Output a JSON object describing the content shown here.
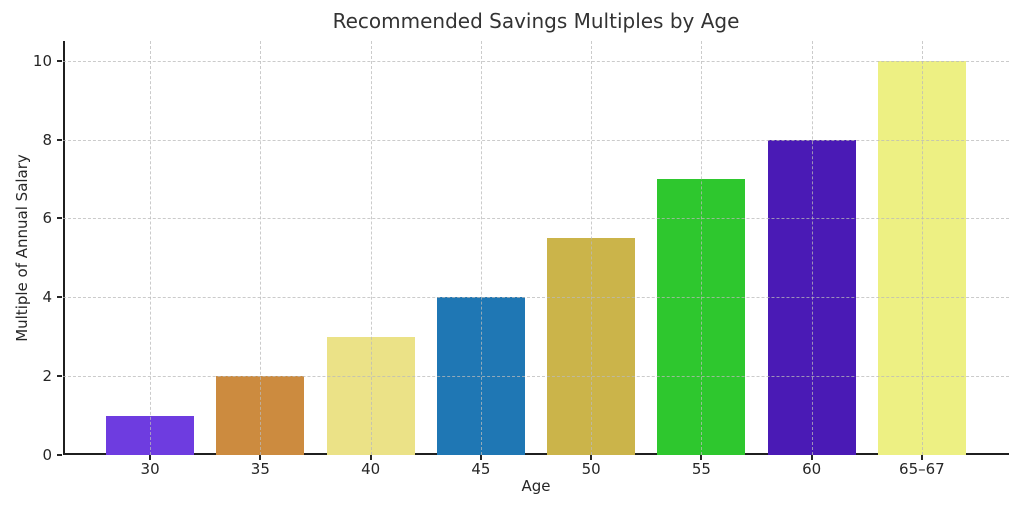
{
  "chart_data": {
    "type": "bar",
    "title": "Recommended Savings Multiples by Age",
    "xlabel": "Age",
    "ylabel": "Multiple of Annual Salary",
    "categories": [
      "30",
      "35",
      "40",
      "45",
      "50",
      "55",
      "60",
      "65–67"
    ],
    "values": [
      1,
      2,
      3,
      4,
      5.5,
      7,
      8,
      10
    ],
    "bar_colors": [
      "#6E3CE0",
      "#CC8B3F",
      "#EBE287",
      "#1F77B4",
      "#CBB44A",
      "#2EC72E",
      "#4A1AB5",
      "#EDF083"
    ],
    "yticks": [
      0,
      2,
      4,
      6,
      8,
      10
    ],
    "ylim": [
      0,
      10.5
    ],
    "bar_width_fraction": 0.8,
    "grid": {
      "visible": true,
      "style": "dashed",
      "axes": "both",
      "color": "#bdbdbd",
      "above_bars": true
    },
    "legend": "none",
    "spines": [
      "left",
      "bottom"
    ],
    "colors": {
      "background": "#ffffff",
      "title_text": "#333333",
      "tick_text": "#262626",
      "spine": "#1f1f1f"
    }
  }
}
